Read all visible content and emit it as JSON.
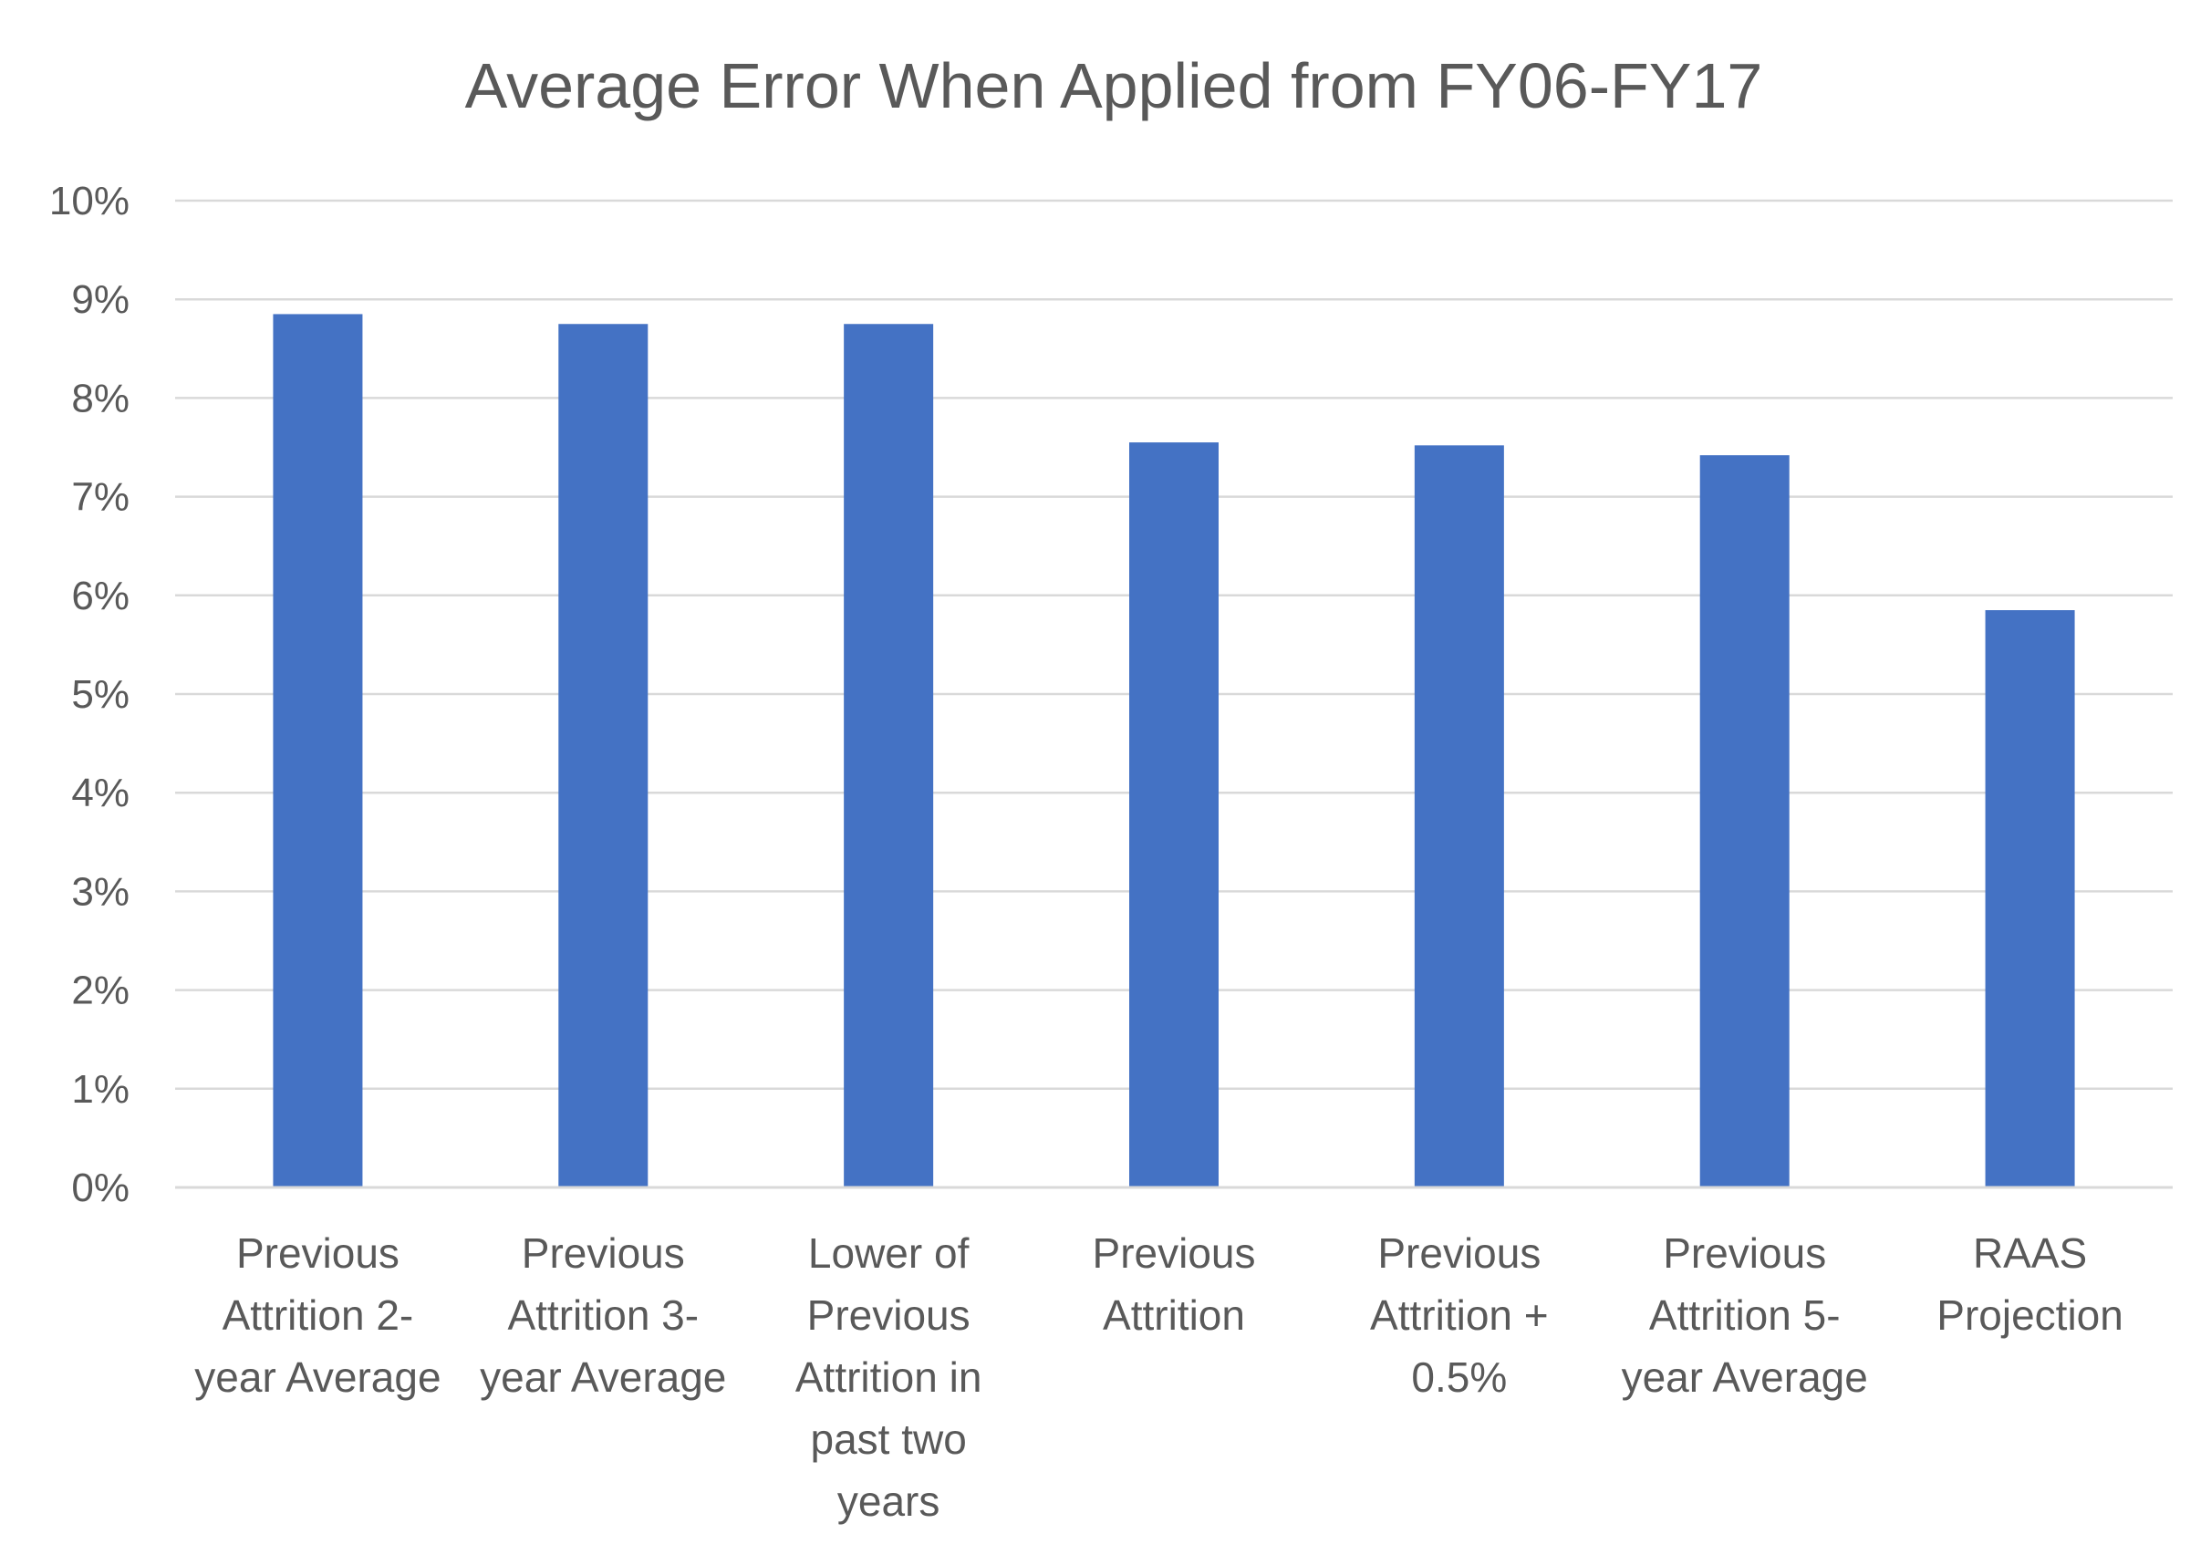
{
  "chart_data": {
    "type": "bar",
    "title": "Average Error When Applied from FY06-FY17",
    "xlabel": "",
    "ylabel": "",
    "ylim": [
      0,
      10
    ],
    "y_unit": "%",
    "y_ticks": [
      "0%",
      "1%",
      "2%",
      "3%",
      "4%",
      "5%",
      "6%",
      "7%",
      "8%",
      "9%",
      "10%"
    ],
    "grid": true,
    "legend": "none",
    "bar_color": "#4472c4",
    "categories": [
      "Previous Attrition 2-year Average",
      "Previous Attrition 3-year Average",
      "Lower of Previous Attrition in past two years",
      "Previous Attrition",
      "Previous Attrition + 0.5%",
      "Previous Attrition 5-year Average",
      "RAAS Projection"
    ],
    "category_lines": [
      [
        "Previous",
        "Attrition 2-",
        "year Average"
      ],
      [
        "Previous",
        "Attrition 3-",
        "year Average"
      ],
      [
        "Lower of",
        "Previous",
        "Attrition in",
        "past two",
        "years"
      ],
      [
        "Previous",
        "Attrition"
      ],
      [
        "Previous",
        "Attrition +",
        "0.5%"
      ],
      [
        "Previous",
        "Attrition 5-",
        "year Average"
      ],
      [
        "RAAS",
        "Projection"
      ]
    ],
    "values": [
      8.85,
      8.75,
      8.75,
      7.55,
      7.52,
      7.42,
      5.85
    ]
  }
}
